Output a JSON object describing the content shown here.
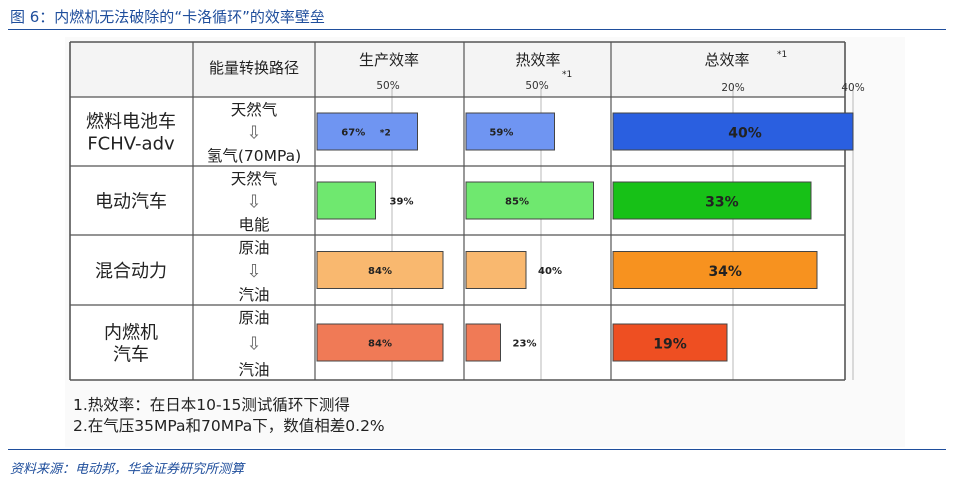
{
  "figure": {
    "title": "图 6：内燃机无法破除的“卡洛循环”的效率壁垒",
    "source": "资料来源：电动邦，华金证券研究所测算"
  },
  "colors": {
    "accent": "#1f4e9c",
    "grid": "#b8b8b8",
    "border": "#555555"
  },
  "chart_data": {
    "type": "table",
    "title": "",
    "columns": {
      "path": "能量转换路径",
      "production": "生产效率",
      "thermal": "热效率",
      "total": "总效率"
    },
    "column_marks": {
      "production": [
        "50%"
      ],
      "thermal": [
        "50%"
      ],
      "total": [
        "20%",
        "40%"
      ],
      "thermal_note": "*1",
      "total_note": "*1"
    },
    "rows": [
      {
        "vehicle": [
          "燃料电池车",
          "FCHV-adv"
        ],
        "path_from": "天然气",
        "arrow": "⇩",
        "path_to": "氢气(70MPa)",
        "production": 67,
        "production_label": "67%",
        "production_note": "*2",
        "thermal": 59,
        "thermal_label": "59%",
        "total": 40,
        "total_label": "40%",
        "color": "#6f95f2",
        "total_color": "#2a5fe0"
      },
      {
        "vehicle": [
          "电动汽车"
        ],
        "path_from": "天然气",
        "arrow": "⇩",
        "path_to": "电能",
        "production": 39,
        "production_label": "39%",
        "production_note": "",
        "thermal": 85,
        "thermal_label": "85%",
        "total": 33,
        "total_label": "33%",
        "color": "#6fe86f",
        "total_color": "#17c117"
      },
      {
        "vehicle": [
          "混合动力"
        ],
        "path_from": "原油",
        "arrow": "⇩",
        "path_to": "汽油",
        "production": 84,
        "production_label": "84%",
        "production_note": "",
        "thermal": 40,
        "thermal_label": "40%",
        "total": 34,
        "total_label": "34%",
        "color": "#f9b86f",
        "total_color": "#f7921f"
      },
      {
        "vehicle": [
          "内燃机",
          "汽车"
        ],
        "path_from": "原油",
        "arrow": "⇩",
        "path_to": "汽油",
        "production": 84,
        "production_label": "84%",
        "production_note": "",
        "thermal": 23,
        "thermal_label": "23%",
        "total": 19,
        "total_label": "19%",
        "color": "#f07a56",
        "total_color": "#ee4f22"
      }
    ],
    "scales": {
      "production_max": 100,
      "thermal_max": 100,
      "total_max": 45
    }
  },
  "notes": [
    "1.热效率：在日本10-15测试循环下测得",
    "2.在气压35MPa和70MPa下，数值相差0.2%"
  ]
}
